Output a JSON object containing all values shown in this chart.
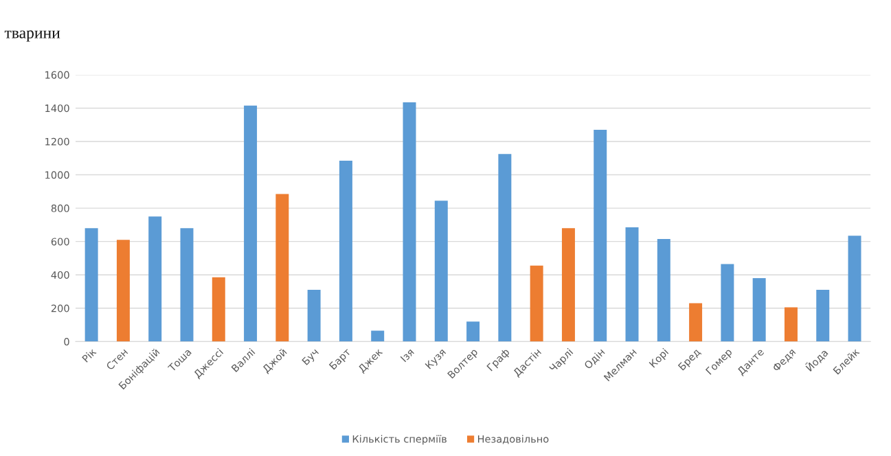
{
  "chart_data": {
    "type": "bar",
    "title": "тварини",
    "categories": [
      "Рік",
      "Стен",
      "Боніфацій",
      "Тоша",
      "Джессі",
      "Валлі",
      "Джой",
      "Буч",
      "Барт",
      "Джек",
      "Ізя",
      "Кузя",
      "Волтер",
      "Граф",
      "Дастін",
      "Чарлі",
      "Одін",
      "Мелман",
      "Корі",
      "Бред",
      "Гомер",
      "Данте",
      "Федя",
      "Йода",
      "Блейк"
    ],
    "series": [
      {
        "name": "Кількість сперміїв",
        "color": "#5b9bd5",
        "values": [
          680,
          null,
          750,
          680,
          null,
          1415,
          null,
          310,
          1085,
          65,
          1435,
          845,
          120,
          1125,
          null,
          null,
          1270,
          685,
          615,
          null,
          465,
          380,
          null,
          310,
          635
        ]
      },
      {
        "name": "Незадовільно",
        "color": "#ed7d31",
        "values": [
          null,
          610,
          null,
          null,
          385,
          null,
          885,
          null,
          null,
          null,
          null,
          null,
          null,
          null,
          455,
          680,
          null,
          null,
          null,
          230,
          null,
          null,
          205,
          null,
          null
        ]
      }
    ],
    "ylim": [
      0,
      1600
    ],
    "yticks": [
      0,
      200,
      400,
      600,
      800,
      1000,
      1200,
      1400,
      1600
    ],
    "grid": "y",
    "legend": "bottom"
  }
}
